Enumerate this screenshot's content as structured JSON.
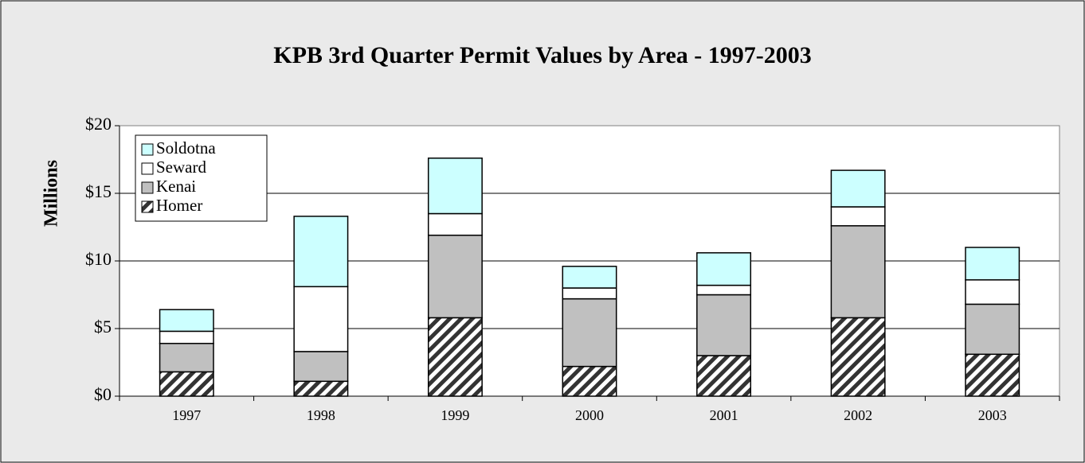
{
  "chart_data": {
    "type": "stacked_bar",
    "title": "KPB 3rd Quarter Permit Values by Area - 1997-2003",
    "y_label": "Millions",
    "categories": [
      "1997",
      "1998",
      "1999",
      "2000",
      "2001",
      "2002",
      "2003"
    ],
    "series": [
      {
        "name": "Homer",
        "color": "#333333",
        "pattern": "hatch",
        "values": [
          1.8,
          1.1,
          5.8,
          2.2,
          3.0,
          5.8,
          3.1
        ]
      },
      {
        "name": "Kenai",
        "color": "#c0c0c0",
        "values": [
          2.1,
          2.2,
          6.1,
          5.0,
          4.5,
          6.8,
          3.7
        ]
      },
      {
        "name": "Seward",
        "color": "#ffffff",
        "values": [
          0.9,
          4.8,
          1.6,
          0.8,
          0.7,
          1.4,
          1.8
        ]
      },
      {
        "name": "Soldotna",
        "color": "#ccffff",
        "values": [
          1.6,
          5.2,
          4.1,
          1.6,
          2.4,
          2.7,
          2.4
        ]
      }
    ],
    "ylim": [
      0,
      20
    ],
    "yticks": [
      {
        "value": 0,
        "label": "$0"
      },
      {
        "value": 5,
        "label": "$5"
      },
      {
        "value": 10,
        "label": "$10"
      },
      {
        "value": 15,
        "label": "$15"
      },
      {
        "value": 20,
        "label": "$20"
      }
    ],
    "grid": true,
    "legend": "top-left"
  }
}
